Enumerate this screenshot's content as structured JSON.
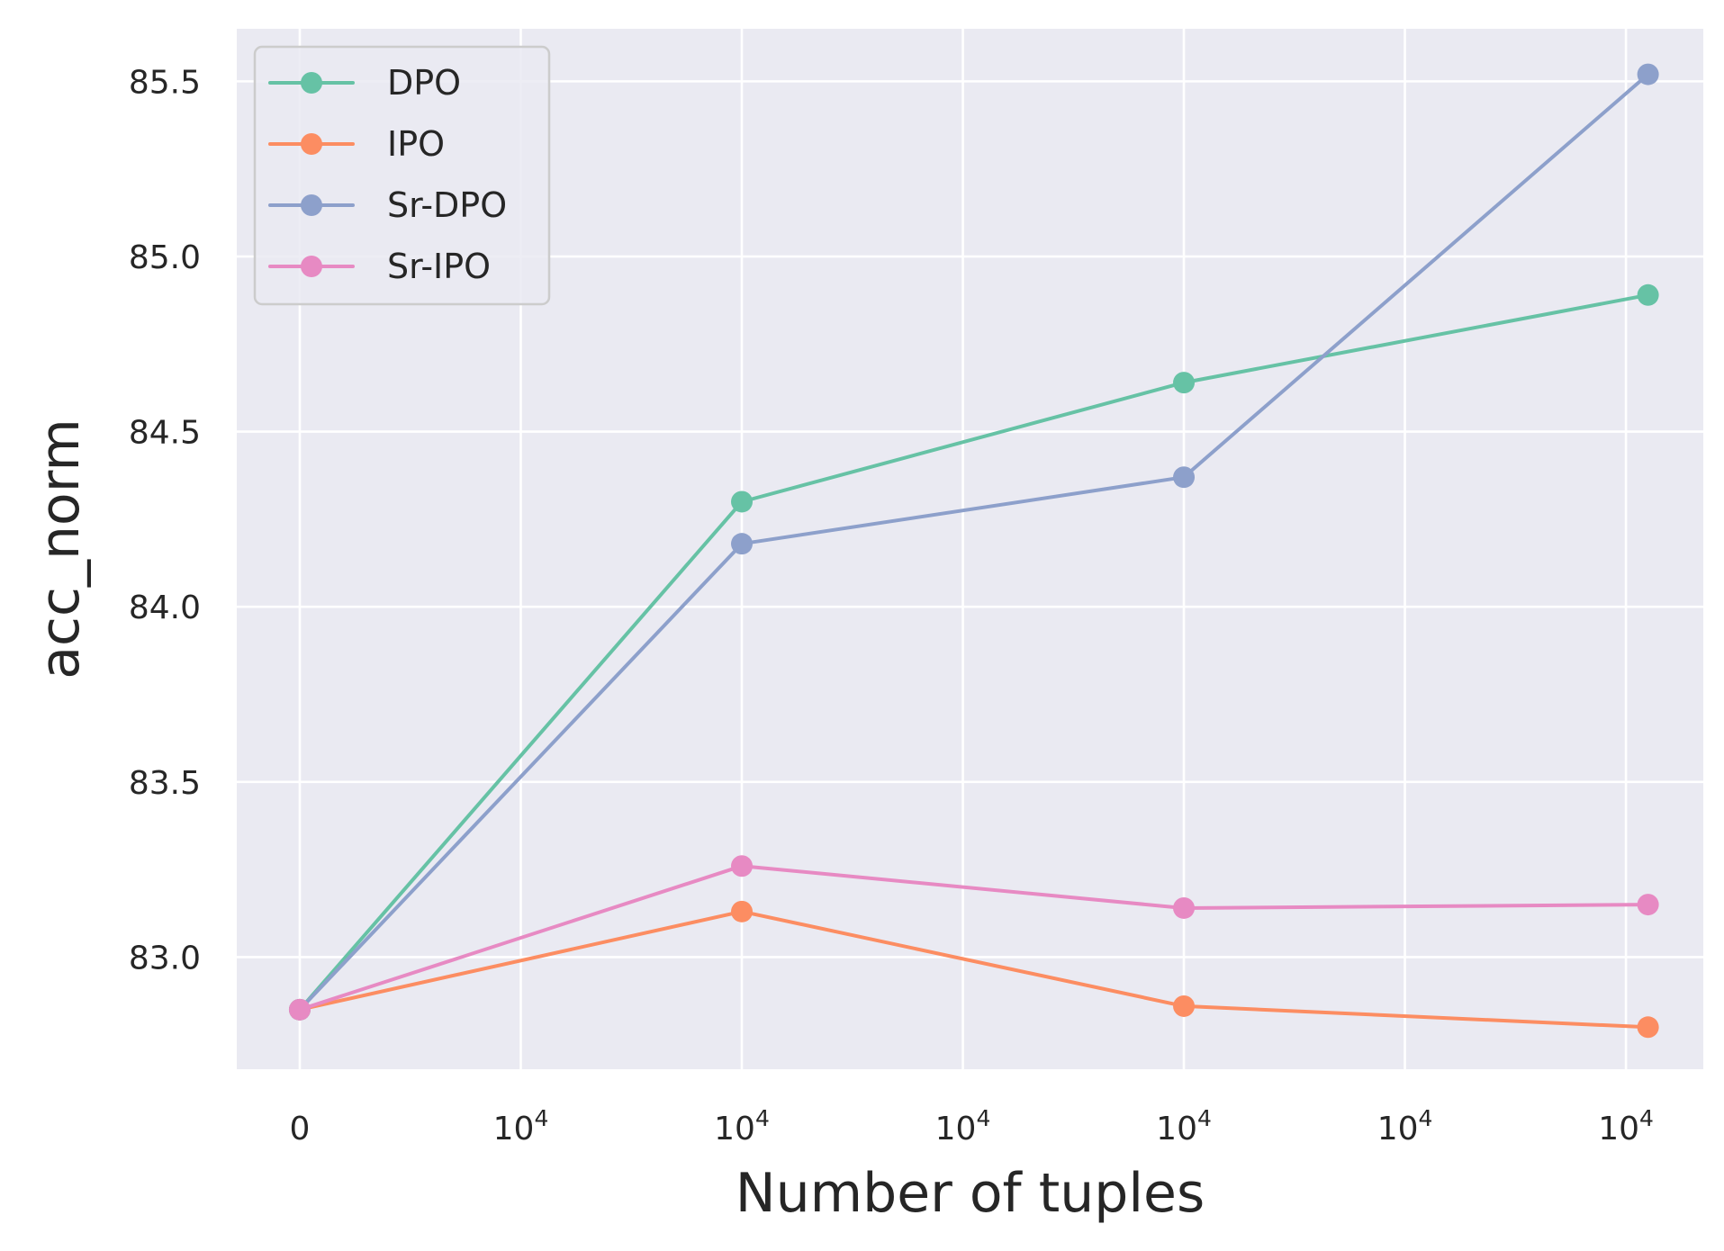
{
  "chart_data": {
    "type": "line",
    "title": "",
    "xlabel": "Number of tuples",
    "ylabel": "acc_norm",
    "x_tick_labels": [
      {
        "base": "0",
        "exp": ""
      },
      {
        "base": "10",
        "exp": "4"
      },
      {
        "base": "10",
        "exp": "4"
      },
      {
        "base": "10",
        "exp": "4"
      },
      {
        "base": "10",
        "exp": "4"
      },
      {
        "base": "10",
        "exp": "4"
      },
      {
        "base": "10",
        "exp": "4"
      }
    ],
    "x_tick_positions": [
      0,
      10000,
      20000,
      30000,
      40000,
      50000,
      60000
    ],
    "y_ticks": [
      "83.0",
      "83.5",
      "84.0",
      "84.5",
      "85.0",
      "85.5"
    ],
    "y_tick_values": [
      83.0,
      83.5,
      84.0,
      84.5,
      85.0,
      85.5
    ],
    "xlim": [
      -2850,
      63500
    ],
    "ylim": [
      82.68,
      85.65
    ],
    "grid": true,
    "legend_position": "upper-left",
    "series": [
      {
        "name": "DPO",
        "color": "#66c2a5",
        "x": [
          0,
          20000,
          40000,
          61000
        ],
        "y": [
          82.85,
          84.3,
          84.64,
          84.89
        ]
      },
      {
        "name": "IPO",
        "color": "#fc8d62",
        "x": [
          0,
          20000,
          40000,
          61000
        ],
        "y": [
          82.85,
          83.13,
          82.86,
          82.8
        ]
      },
      {
        "name": "Sr-DPO",
        "color": "#8da0cb",
        "x": [
          0,
          20000,
          40000,
          61000
        ],
        "y": [
          82.85,
          84.18,
          84.37,
          85.52
        ]
      },
      {
        "name": "Sr-IPO",
        "color": "#e78ac3",
        "x": [
          0,
          20000,
          40000,
          61000
        ],
        "y": [
          82.85,
          83.26,
          83.14,
          83.15
        ]
      }
    ]
  }
}
